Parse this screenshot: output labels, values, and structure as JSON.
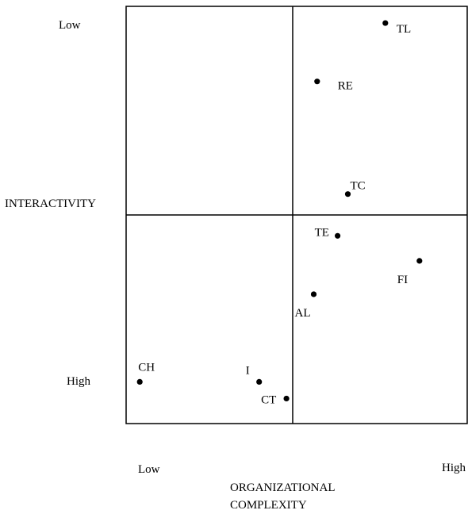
{
  "chart_data": {
    "type": "scatter",
    "xlabel": [
      "ORGANIZATIONAL",
      "COMPLEXITY"
    ],
    "ylabel": "INTERACTIVITY",
    "x_tick_labels": {
      "low": "Low",
      "high": "High"
    },
    "y_tick_labels": {
      "top": "Low",
      "bottom": "High"
    },
    "xlim": [
      0,
      1
    ],
    "ylim": [
      0,
      1
    ],
    "y_axis_direction": "interactivity increases downward",
    "quadrant_dividers": {
      "x": 0.5,
      "y": 0.5
    },
    "grid": false,
    "legend": "none",
    "points": [
      {
        "label": "TL",
        "x": 0.76,
        "y": 0.96
      },
      {
        "label": "RE",
        "x": 0.56,
        "y": 0.82
      },
      {
        "label": "TC",
        "x": 0.65,
        "y": 0.55
      },
      {
        "label": "TE",
        "x": 0.62,
        "y": 0.45
      },
      {
        "label": "FI",
        "x": 0.86,
        "y": 0.39
      },
      {
        "label": "AL",
        "x": 0.55,
        "y": 0.31
      },
      {
        "label": "CH",
        "x": 0.04,
        "y": 0.1
      },
      {
        "label": "I",
        "x": 0.39,
        "y": 0.1
      },
      {
        "label": "CT",
        "x": 0.47,
        "y": 0.06
      }
    ]
  }
}
